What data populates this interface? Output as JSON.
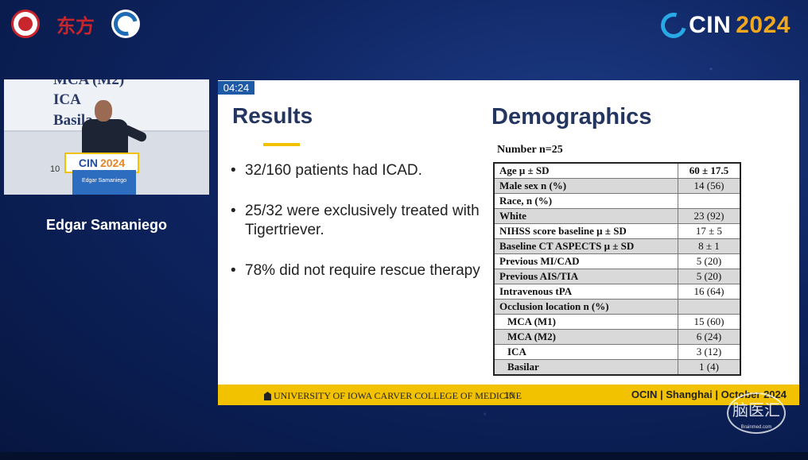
{
  "event_logo": {
    "text": "CIN",
    "year": "2024"
  },
  "top_logos": [
    "hospital-seal-icon",
    "calligraphy-logo-icon",
    "wave-logo-icon"
  ],
  "speaker_video": {
    "background_lines": [
      "MCA (M2)",
      "ICA",
      "Basila"
    ],
    "background_number": "10",
    "podium_sign": {
      "text": "CIN",
      "year": "2024"
    },
    "podium_name": "Edgar Samaniego"
  },
  "speaker_name": "Edgar Samaniego",
  "slide": {
    "timer": "04:24",
    "results_title": "Results",
    "bullets": [
      "32/160 patients had ICAD.",
      "25/32 were exclusively treated with Tigertriever.",
      "78% did not require rescue therapy"
    ],
    "demographics_title": "Demographics",
    "number_label": "Number n=25",
    "table": [
      {
        "label": "Age μ ± SD",
        "value": "60 ± 17.5"
      },
      {
        "label": "Male sex n (%)",
        "value": "14 (56)"
      },
      {
        "label": "Race, n (%)",
        "value": ""
      },
      {
        "label": "White",
        "value": "23 (92)"
      },
      {
        "label": "NIHSS score baseline  μ ± SD",
        "value": "17 ± 5"
      },
      {
        "label": "Baseline CT ASPECTS μ ± SD",
        "value": "8 ± 1"
      },
      {
        "label": "Previous MI/CAD",
        "value": "5 (20)"
      },
      {
        "label": "Previous AIS/TIA",
        "value": "5 (20)"
      },
      {
        "label": "Intravenous tPA",
        "value": "16 (64)"
      },
      {
        "label": "Occlusion location n (%)",
        "value": ""
      },
      {
        "label": "MCA (M1)",
        "value": "15 (60)"
      },
      {
        "label": "MCA (M2)",
        "value": "6 (24)"
      },
      {
        "label": "ICA",
        "value": "3 (12)"
      },
      {
        "label": "Basilar",
        "value": "1 (4)"
      }
    ],
    "footer": {
      "university": "UNIVERSITY OF IOWA CARVER COLLEGE OF MEDICINE",
      "page": "10",
      "right": "OCIN   |  Shanghai  |  October 2024"
    }
  },
  "watermark": {
    "text": "脑医汇",
    "sub": "Brainmed.com"
  }
}
